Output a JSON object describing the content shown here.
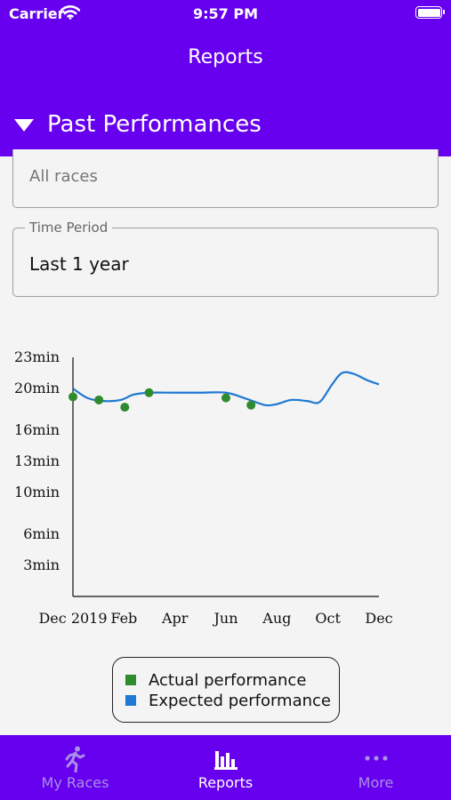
{
  "status_bar": {
    "carrier": "Carrier",
    "time": "9:57 PM"
  },
  "nav": {
    "title": "Reports"
  },
  "section": {
    "title": "Past Performances",
    "expanded": true
  },
  "filters": {
    "race": {
      "value": "All races"
    },
    "time_period": {
      "label": "Time Period",
      "value": "Last 1 year"
    }
  },
  "chart_data": {
    "type": "line",
    "title": "",
    "xlabel": "",
    "ylabel": "",
    "x_ticks": [
      "Dec 2019",
      "Feb",
      "Apr",
      "Jun",
      "Aug",
      "Oct",
      "Dec"
    ],
    "y_ticks": [
      "3min",
      "6min",
      "10min",
      "13min",
      "16min",
      "20min",
      "23min"
    ],
    "y_tick_values": [
      3,
      6,
      10,
      13,
      16,
      20,
      23
    ],
    "ylim": [
      0,
      23
    ],
    "series": [
      {
        "name": "Expected performance",
        "kind": "line",
        "color": "#1f78d1",
        "points": [
          [
            "2019-12-15",
            20.0
          ],
          [
            "2020-01-01",
            19.1
          ],
          [
            "2020-01-20",
            18.8
          ],
          [
            "2020-02-10",
            18.9
          ],
          [
            "2020-02-25",
            19.4
          ],
          [
            "2020-03-15",
            19.6
          ],
          [
            "2020-04-15",
            19.6
          ],
          [
            "2020-05-15",
            19.6
          ],
          [
            "2020-06-15",
            19.6
          ],
          [
            "2020-07-10",
            19.0
          ],
          [
            "2020-08-01",
            18.4
          ],
          [
            "2020-08-15",
            18.5
          ],
          [
            "2020-09-01",
            18.9
          ],
          [
            "2020-09-20",
            18.8
          ],
          [
            "2020-10-05",
            18.7
          ],
          [
            "2020-10-20",
            20.4
          ],
          [
            "2020-11-01",
            21.5
          ],
          [
            "2020-11-15",
            21.4
          ],
          [
            "2020-12-01",
            20.8
          ],
          [
            "2020-12-15",
            20.4
          ]
        ]
      },
      {
        "name": "Actual performance",
        "kind": "scatter",
        "color": "#2e8b2e",
        "points": [
          [
            "2019-12-15",
            19.2
          ],
          [
            "2020-01-15",
            18.9
          ],
          [
            "2020-02-15",
            18.2
          ],
          [
            "2020-03-15",
            19.6
          ],
          [
            "2020-06-15",
            19.1
          ],
          [
            "2020-07-15",
            18.4
          ]
        ]
      }
    ],
    "legend": [
      {
        "label": "Actual performance",
        "color": "#2e8b2e"
      },
      {
        "label": "Expected performance",
        "color": "#1f78d1"
      }
    ]
  },
  "tabs": [
    {
      "label": "My Races",
      "icon": "runner-icon",
      "active": false
    },
    {
      "label": "Reports",
      "icon": "bar-chart-icon",
      "active": true
    },
    {
      "label": "More",
      "icon": "more-dots-icon",
      "active": false
    }
  ]
}
